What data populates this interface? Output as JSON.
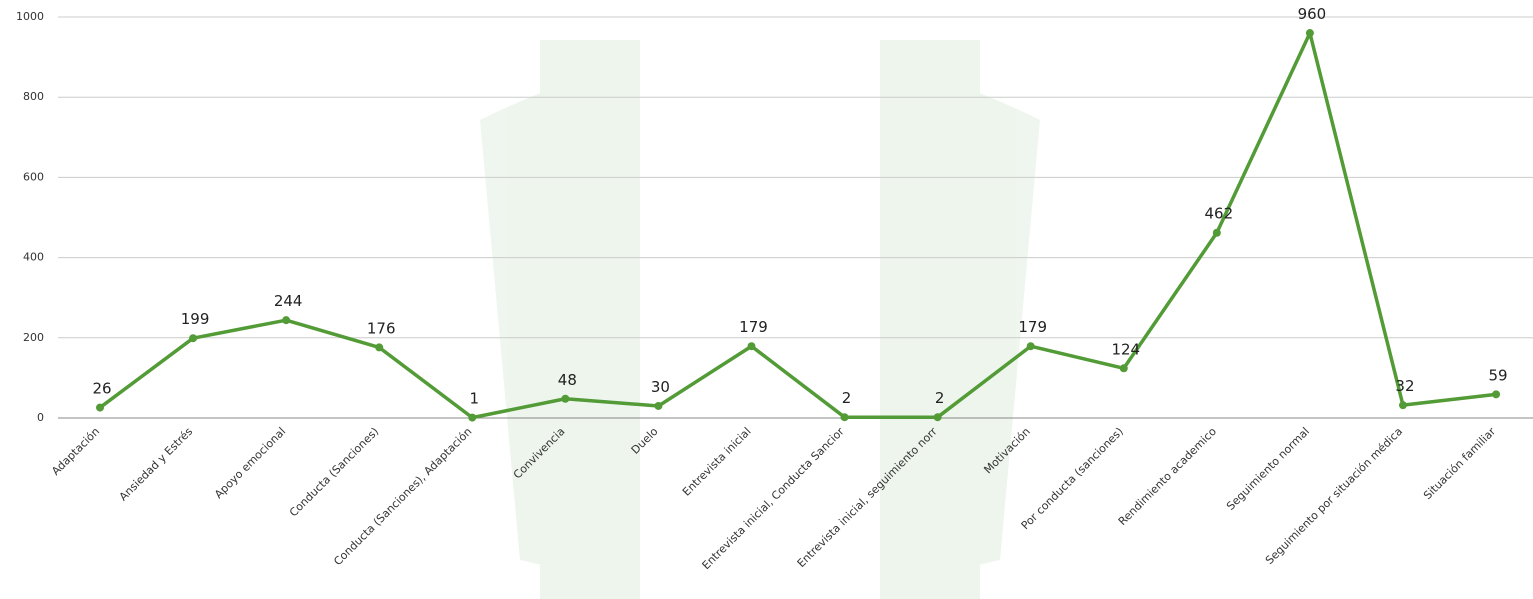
{
  "chart_data": {
    "type": "line",
    "categories": [
      "Adaptación",
      "Ansiedad y Estrés",
      "Apoyo emocional",
      "Conducta (Sanciones)",
      "Conducta (Sanciones), Adaptación",
      "Convivencia",
      "Duelo",
      "Entrevista inicial",
      "Entrevista inicial, Conducta Sancior",
      "Entrevista inicial, seguimiento norr",
      "Motivación",
      "Por conducta (sanciones)",
      "Rendimiento academico",
      "Seguimiento normal",
      "Seguimiento por situación médica",
      "Situación familiar"
    ],
    "series": [
      {
        "color": "#529b36",
        "values": [
          26,
          199,
          244,
          176,
          1,
          48,
          30,
          179,
          2,
          2,
          179,
          124,
          462,
          960,
          32,
          59
        ]
      }
    ],
    "ylim": [
      0,
      1000
    ],
    "yticks": [
      0,
      200,
      400,
      600,
      800,
      1000
    ],
    "grid": true
  }
}
